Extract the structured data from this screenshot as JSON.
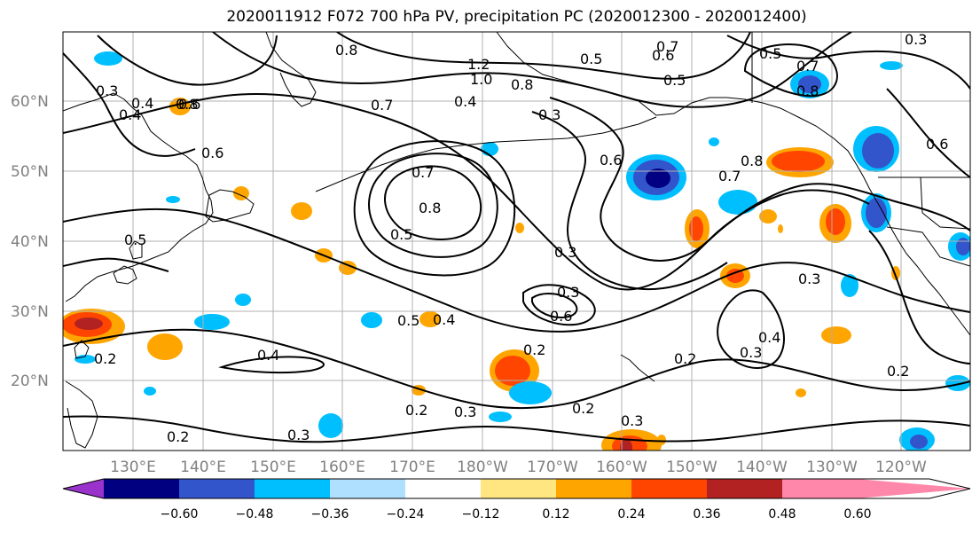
{
  "title": "2020011912 F072 700 hPa PV, precipitation PC (2020012300 - 2020012400)",
  "latitude_labels": [
    "60°N",
    "50°N",
    "40°N",
    "30°N",
    "20°N"
  ],
  "longitude_labels": [
    "130°E",
    "140°E",
    "150°E",
    "160°E",
    "170°E",
    "180°W",
    "170°W",
    "160°W",
    "150°W",
    "140°W",
    "130°W",
    "120°W"
  ],
  "contour_labels": [
    "0.8",
    "1.2",
    "1.0",
    "0.8",
    "0.7",
    "0.6",
    "0.5",
    "0.5",
    "0.4",
    "0.7",
    "0.8",
    "0.3",
    "0.4",
    "0.3",
    "0.6",
    "0.4",
    "0.6",
    "0.7",
    "0.8",
    "0.5",
    "0.7",
    "0.8",
    "0.6",
    "0.5",
    "0.6",
    "0.3",
    "0.7",
    "0.8",
    "0.5",
    "0.3",
    "0.3",
    "0.3",
    "0.6",
    "0.5",
    "0.4",
    "0.3",
    "0.2",
    "0.4",
    "0.4",
    "0.2",
    "0.2",
    "0.2",
    "0.3",
    "0.2",
    "0.3",
    "0.2",
    "0.3",
    "0.2"
  ],
  "colorbar": {
    "ticks": [
      "−0.60",
      "−0.48",
      "−0.36",
      "−0.24",
      "−0.12",
      "0.12",
      "0.24",
      "0.36",
      "0.48",
      "0.60"
    ],
    "colors": [
      "#9933cc",
      "#000080",
      "#3355cc",
      "#00bfff",
      "#b0e0ff",
      "#ffffff",
      "#ffe680",
      "#ffa500",
      "#ff4500",
      "#b22222",
      "#ff88aa"
    ]
  }
}
